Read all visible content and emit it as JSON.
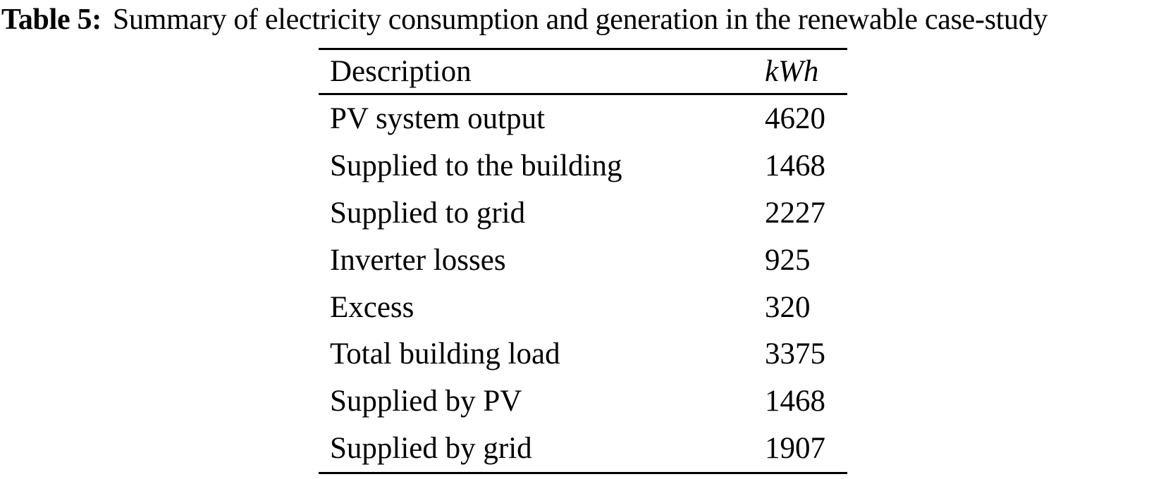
{
  "caption": {
    "label": "Table 5:",
    "text": "Summary of electricity consumption and generation in the renewable case-study"
  },
  "table": {
    "columns": [
      "Description",
      "kWh"
    ],
    "rows": [
      {
        "description": "PV system output",
        "kwh": "4620"
      },
      {
        "description": "Supplied to the building",
        "kwh": "1468"
      },
      {
        "description": "Supplied to grid",
        "kwh": "2227"
      },
      {
        "description": "Inverter losses",
        "kwh": "925"
      },
      {
        "description": "Excess",
        "kwh": "320"
      },
      {
        "description": "Total building load",
        "kwh": "3375"
      },
      {
        "description": "Supplied by PV",
        "kwh": "1468"
      },
      {
        "description": "Supplied by grid",
        "kwh": "1907"
      }
    ]
  },
  "style": {
    "text_color": "#000000",
    "background_color": "#ffffff",
    "rule_color": "#000000"
  }
}
